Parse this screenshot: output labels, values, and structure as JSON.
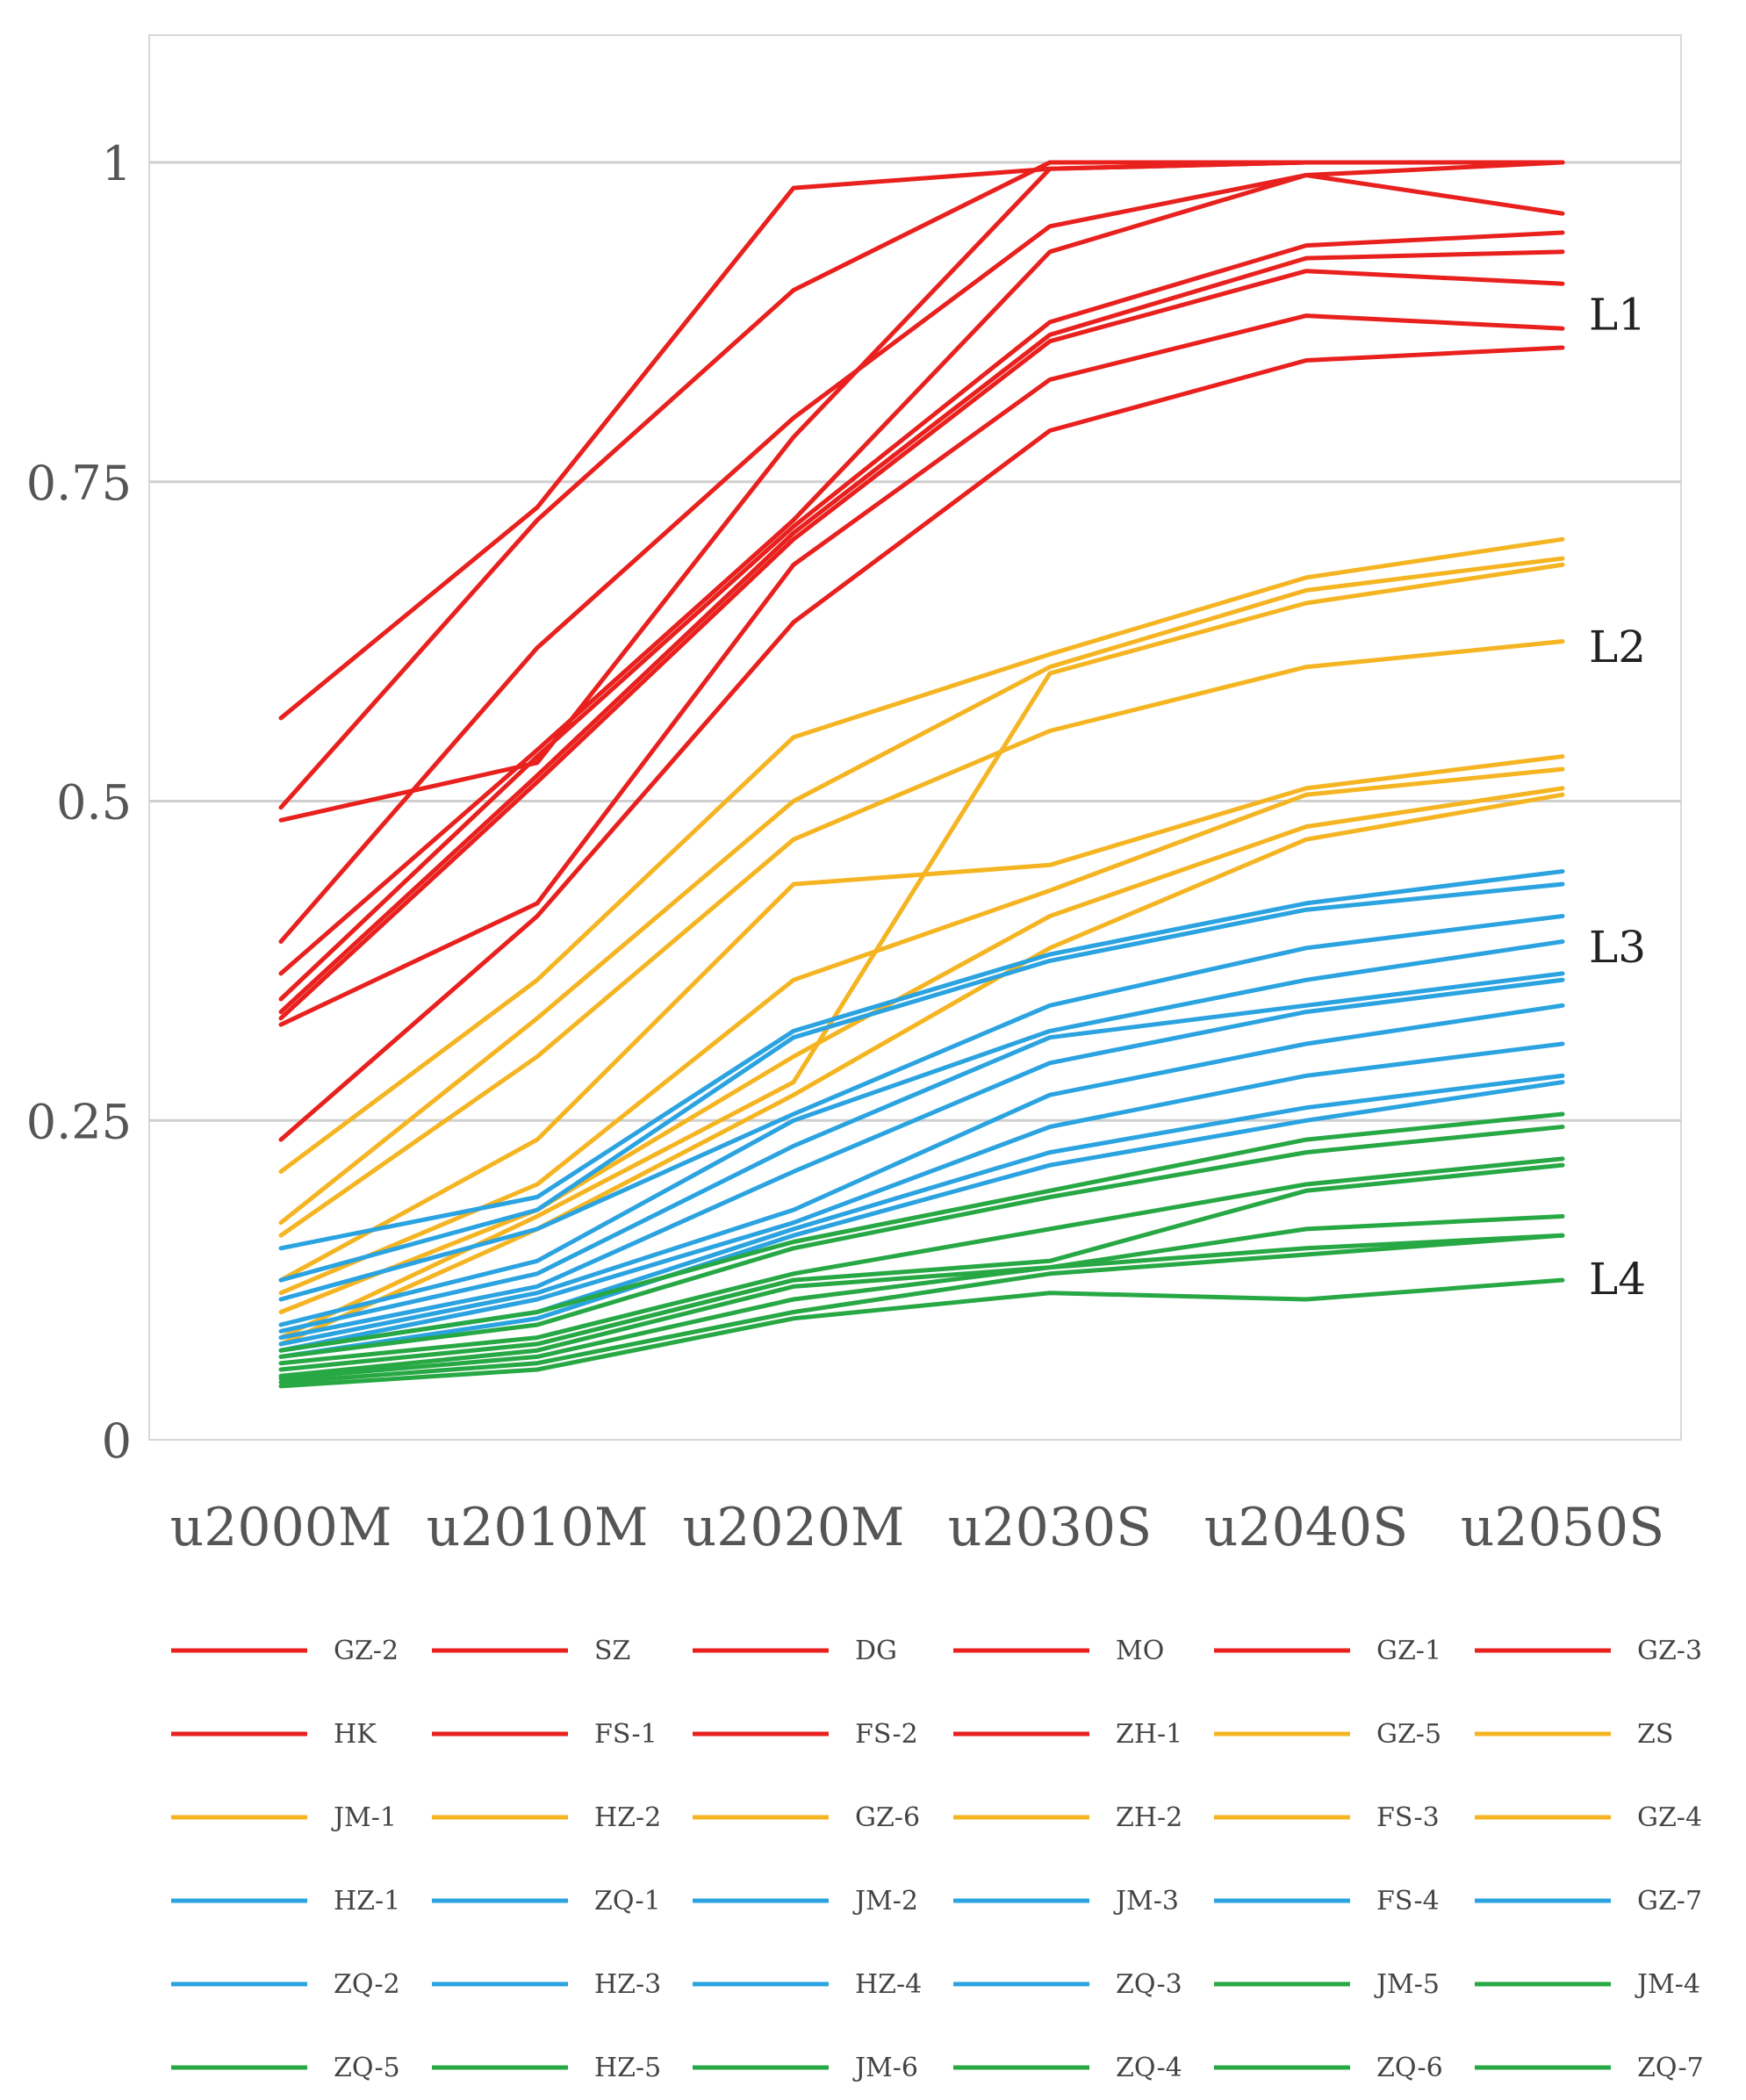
{
  "chart_data": {
    "type": "line",
    "title": "",
    "xlabel": "",
    "ylabel": "",
    "ylim": [
      0,
      1.1
    ],
    "y_ticks": [
      "0",
      "0.25",
      "0.5",
      "0.75",
      "1"
    ],
    "grid": true,
    "legend_position": "bottom",
    "categories": [
      "u2000M",
      "u2010M",
      "u2020M",
      "u2030S",
      "u2040S",
      "u2050S"
    ],
    "colors": {
      "L1": "#e8201e",
      "L2": "#f5b422",
      "L3": "#2ba3e0",
      "L4": "#27a844"
    },
    "level_labels": [
      {
        "text": "L1",
        "value": 0.88
      },
      {
        "text": "L2",
        "value": 0.62
      },
      {
        "text": "L3",
        "value": 0.385
      },
      {
        "text": "L4",
        "value": 0.125
      }
    ],
    "series": [
      {
        "name": "GZ-2",
        "group": "L1",
        "values": [
          0.565,
          0.73,
          0.98,
          0.995,
          1.0,
          1.0
        ]
      },
      {
        "name": "SZ",
        "group": "L1",
        "values": [
          0.495,
          0.72,
          0.9,
          1.0,
          1.0,
          1.0
        ]
      },
      {
        "name": "DG",
        "group": "L1",
        "values": [
          0.485,
          0.53,
          0.785,
          0.995,
          1.0,
          1.0
        ]
      },
      {
        "name": "MO",
        "group": "L1",
        "values": [
          0.39,
          0.62,
          0.8,
          0.95,
          0.99,
          1.0
        ]
      },
      {
        "name": "GZ-1",
        "group": "L1",
        "values": [
          0.365,
          0.54,
          0.72,
          0.93,
          0.99,
          0.96
        ]
      },
      {
        "name": "GZ-3",
        "group": "L1",
        "values": [
          0.345,
          0.535,
          0.715,
          0.875,
          0.935,
          0.945
        ]
      },
      {
        "name": "HK",
        "group": "L1",
        "values": [
          0.335,
          0.52,
          0.71,
          0.865,
          0.925,
          0.93
        ]
      },
      {
        "name": "FS-1",
        "group": "L1",
        "values": [
          0.33,
          0.515,
          0.705,
          0.86,
          0.915,
          0.905
        ]
      },
      {
        "name": "FS-2",
        "group": "L1",
        "values": [
          0.325,
          0.42,
          0.685,
          0.83,
          0.88,
          0.87
        ]
      },
      {
        "name": "ZH-1",
        "group": "L1",
        "values": [
          0.235,
          0.41,
          0.64,
          0.79,
          0.845,
          0.855
        ]
      },
      {
        "name": "GZ-5",
        "group": "L2",
        "values": [
          0.21,
          0.36,
          0.55,
          0.615,
          0.675,
          0.705
        ]
      },
      {
        "name": "ZS",
        "group": "L2",
        "values": [
          0.17,
          0.33,
          0.5,
          0.605,
          0.665,
          0.69
        ]
      },
      {
        "name": "JM-1",
        "group": "L2",
        "values": [
          0.16,
          0.3,
          0.47,
          0.555,
          0.605,
          0.625
        ]
      },
      {
        "name": "HZ-2",
        "group": "L2",
        "values": [
          0.125,
          0.235,
          0.435,
          0.45,
          0.51,
          0.535
        ]
      },
      {
        "name": "GZ-6",
        "group": "L2",
        "values": [
          0.115,
          0.2,
          0.36,
          0.43,
          0.505,
          0.525
        ]
      },
      {
        "name": "ZH-2",
        "group": "L2",
        "values": [
          0.1,
          0.18,
          0.3,
          0.41,
          0.48,
          0.51
        ]
      },
      {
        "name": "FS-3",
        "group": "L2",
        "values": [
          0.08,
          0.175,
          0.28,
          0.6,
          0.655,
          0.685
        ]
      },
      {
        "name": "GZ-4",
        "group": "L2",
        "values": [
          0.075,
          0.165,
          0.27,
          0.385,
          0.47,
          0.505
        ]
      },
      {
        "name": "HZ-1",
        "group": "L3",
        "values": [
          0.15,
          0.19,
          0.32,
          0.38,
          0.42,
          0.445
        ]
      },
      {
        "name": "ZQ-1",
        "group": "L3",
        "values": [
          0.125,
          0.18,
          0.315,
          0.375,
          0.415,
          0.435
        ]
      },
      {
        "name": "JM-2",
        "group": "L3",
        "values": [
          0.11,
          0.165,
          0.255,
          0.34,
          0.385,
          0.41
        ]
      },
      {
        "name": "JM-3",
        "group": "L3",
        "values": [
          0.09,
          0.14,
          0.25,
          0.32,
          0.36,
          0.39
        ]
      },
      {
        "name": "FS-4",
        "group": "L3",
        "values": [
          0.085,
          0.13,
          0.23,
          0.315,
          0.34,
          0.365
        ]
      },
      {
        "name": "GZ-7",
        "group": "L3",
        "values": [
          0.08,
          0.12,
          0.21,
          0.295,
          0.335,
          0.36
        ]
      },
      {
        "name": "ZQ-2",
        "group": "L3",
        "values": [
          0.075,
          0.115,
          0.18,
          0.27,
          0.31,
          0.34
        ]
      },
      {
        "name": "HZ-3",
        "group": "L3",
        "values": [
          0.07,
          0.11,
          0.17,
          0.245,
          0.285,
          0.31
        ]
      },
      {
        "name": "HZ-4",
        "group": "L3",
        "values": [
          0.07,
          0.1,
          0.165,
          0.225,
          0.26,
          0.285
        ]
      },
      {
        "name": "ZQ-3",
        "group": "L3",
        "values": [
          0.065,
          0.095,
          0.16,
          0.215,
          0.25,
          0.28
        ]
      },
      {
        "name": "JM-5",
        "group": "L4",
        "values": [
          0.07,
          0.1,
          0.155,
          0.195,
          0.235,
          0.255
        ]
      },
      {
        "name": "JM-4",
        "group": "L4",
        "values": [
          0.065,
          0.09,
          0.15,
          0.19,
          0.225,
          0.245
        ]
      },
      {
        "name": "ZQ-5",
        "group": "L4",
        "values": [
          0.06,
          0.08,
          0.13,
          0.165,
          0.2,
          0.22
        ]
      },
      {
        "name": "HZ-5",
        "group": "L4",
        "values": [
          0.055,
          0.075,
          0.125,
          0.14,
          0.195,
          0.215
        ]
      },
      {
        "name": "JM-6",
        "group": "L4",
        "values": [
          0.05,
          0.07,
          0.12,
          0.135,
          0.165,
          0.175
        ]
      },
      {
        "name": "ZQ-4",
        "group": "L4",
        "values": [
          0.048,
          0.065,
          0.11,
          0.135,
          0.15,
          0.16
        ]
      },
      {
        "name": "ZQ-6",
        "group": "L4",
        "values": [
          0.045,
          0.06,
          0.1,
          0.13,
          0.145,
          0.16
        ]
      },
      {
        "name": "ZQ-7",
        "group": "L4",
        "values": [
          0.042,
          0.055,
          0.095,
          0.115,
          0.11,
          0.125
        ]
      }
    ]
  }
}
